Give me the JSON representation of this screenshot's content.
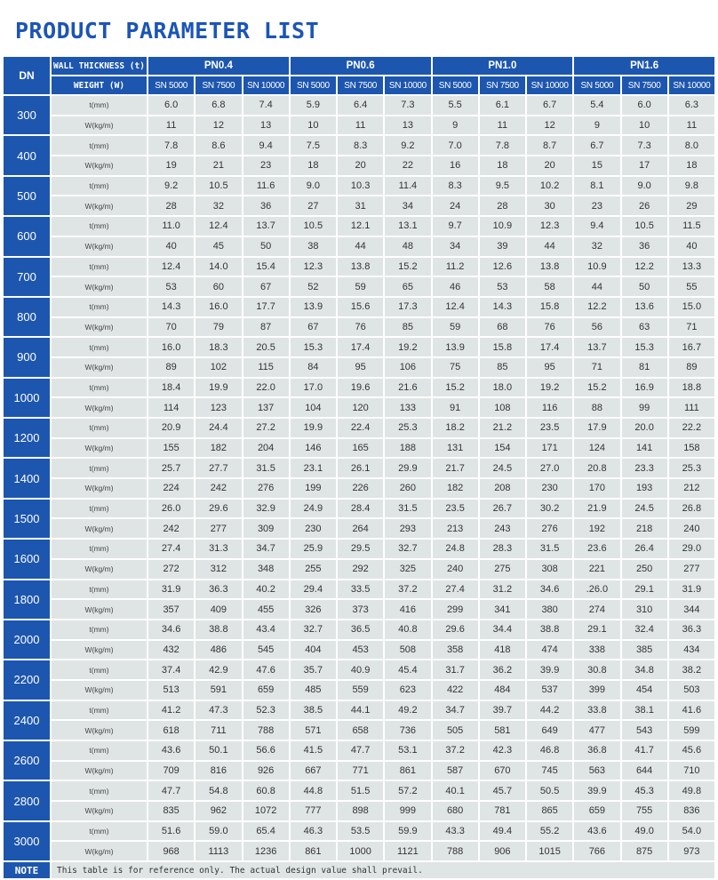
{
  "title": "PRODUCT PARAMETER LIST",
  "header": {
    "dn": "DN",
    "wall_thickness": "WALL THICKNESS (t)",
    "weight": "WEIGHT (W)",
    "pn_groups": [
      "PN0.4",
      "PN0.6",
      "PN1.0",
      "PN1.6"
    ],
    "sn_classes": [
      "SN 5000",
      "SN 7500",
      "SN 10000"
    ]
  },
  "row_labels": {
    "t": "t(mm)",
    "w": "W(kg/m)"
  },
  "rows": [
    {
      "dn": "300",
      "t": [
        "6.0",
        "6.8",
        "7.4",
        "5.9",
        "6.4",
        "7.3",
        "5.5",
        "6.1",
        "6.7",
        "5.4",
        "6.0",
        "6.3"
      ],
      "w": [
        "11",
        "12",
        "13",
        "10",
        "11",
        "13",
        "9",
        "11",
        "12",
        "9",
        "10",
        "11"
      ]
    },
    {
      "dn": "400",
      "t": [
        "7.8",
        "8.6",
        "9.4",
        "7.5",
        "8.3",
        "9.2",
        "7.0",
        "7.8",
        "8.7",
        "6.7",
        "7.3",
        "8.0"
      ],
      "w": [
        "19",
        "21",
        "23",
        "18",
        "20",
        "22",
        "16",
        "18",
        "20",
        "15",
        "17",
        "18"
      ]
    },
    {
      "dn": "500",
      "t": [
        "9.2",
        "10.5",
        "11.6",
        "9.0",
        "10.3",
        "11.4",
        "8.3",
        "9.5",
        "10.2",
        "8.1",
        "9.0",
        "9.8"
      ],
      "w": [
        "28",
        "32",
        "36",
        "27",
        "31",
        "34",
        "24",
        "28",
        "30",
        "23",
        "26",
        "29"
      ]
    },
    {
      "dn": "600",
      "t": [
        "11.0",
        "12.4",
        "13.7",
        "10.5",
        "12.1",
        "13.1",
        "9.7",
        "10.9",
        "12.3",
        "9.4",
        "10.5",
        "11.5"
      ],
      "w": [
        "40",
        "45",
        "50",
        "38",
        "44",
        "48",
        "34",
        "39",
        "44",
        "32",
        "36",
        "40"
      ]
    },
    {
      "dn": "700",
      "t": [
        "12.4",
        "14.0",
        "15.4",
        "12.3",
        "13.8",
        "15.2",
        "11.2",
        "12.6",
        "13.8",
        "10.9",
        "12.2",
        "13.3"
      ],
      "w": [
        "53",
        "60",
        "67",
        "52",
        "59",
        "65",
        "46",
        "53",
        "58",
        "44",
        "50",
        "55"
      ]
    },
    {
      "dn": "800",
      "t": [
        "14.3",
        "16.0",
        "17.7",
        "13.9",
        "15.6",
        "17.3",
        "12.4",
        "14.3",
        "15.8",
        "12.2",
        "13.6",
        "15.0"
      ],
      "w": [
        "70",
        "79",
        "87",
        "67",
        "76",
        "85",
        "59",
        "68",
        "76",
        "56",
        "63",
        "71"
      ]
    },
    {
      "dn": "900",
      "t": [
        "16.0",
        "18.3",
        "20.5",
        "15.3",
        "17.4",
        "19.2",
        "13.9",
        "15.8",
        "17.4",
        "13.7",
        "15.3",
        "16.7"
      ],
      "w": [
        "89",
        "102",
        "115",
        "84",
        "95",
        "106",
        "75",
        "85",
        "95",
        "71",
        "81",
        "89"
      ]
    },
    {
      "dn": "1000",
      "t": [
        "18.4",
        "19.9",
        "22.0",
        "17.0",
        "19.6",
        "21.6",
        "15.2",
        "18.0",
        "19.2",
        "15.2",
        "16.9",
        "18.8"
      ],
      "w": [
        "114",
        "123",
        "137",
        "104",
        "120",
        "133",
        "91",
        "108",
        "116",
        "88",
        "99",
        "111"
      ]
    },
    {
      "dn": "1200",
      "t": [
        "20.9",
        "24.4",
        "27.2",
        "19.9",
        "22.4",
        "25.3",
        "18.2",
        "21.2",
        "23.5",
        "17.9",
        "20.0",
        "22.2"
      ],
      "w": [
        "155",
        "182",
        "204",
        "146",
        "165",
        "188",
        "131",
        "154",
        "171",
        "124",
        "141",
        "158"
      ]
    },
    {
      "dn": "1400",
      "t": [
        "25.7",
        "27.7",
        "31.5",
        "23.1",
        "26.1",
        "29.9",
        "21.7",
        "24.5",
        "27.0",
        "20.8",
        "23.3",
        "25.3"
      ],
      "w": [
        "224",
        "242",
        "276",
        "199",
        "226",
        "260",
        "182",
        "208",
        "230",
        "170",
        "193",
        "212"
      ]
    },
    {
      "dn": "1500",
      "t": [
        "26.0",
        "29.6",
        "32.9",
        "24.9",
        "28.4",
        "31.5",
        "23.5",
        "26.7",
        "30.2",
        "21.9",
        "24.5",
        "26.8"
      ],
      "w": [
        "242",
        "277",
        "309",
        "230",
        "264",
        "293",
        "213",
        "243",
        "276",
        "192",
        "218",
        "240"
      ]
    },
    {
      "dn": "1600",
      "t": [
        "27.4",
        "31.3",
        "34.7",
        "25.9",
        "29.5",
        "32.7",
        "24.8",
        "28.3",
        "31.5",
        "23.6",
        "26.4",
        "29.0"
      ],
      "w": [
        "272",
        "312",
        "348",
        "255",
        "292",
        "325",
        "240",
        "275",
        "308",
        "221",
        "250",
        "277"
      ]
    },
    {
      "dn": "1800",
      "t": [
        "31.9",
        "36.3",
        "40.2",
        "29.4",
        "33.5",
        "37.2",
        "27.4",
        "31.2",
        "34.6",
        ".26.0",
        "29.1",
        "31.9"
      ],
      "w": [
        "357",
        "409",
        "455",
        "326",
        "373",
        "416",
        "299",
        "341",
        "380",
        "274",
        "310",
        "344"
      ]
    },
    {
      "dn": "2000",
      "t": [
        "34.6",
        "38.8",
        "43.4",
        "32.7",
        "36.5",
        "40.8",
        "29.6",
        "34.4",
        "38.8",
        "29.1",
        "32.4",
        "36.3"
      ],
      "w": [
        "432",
        "486",
        "545",
        "404",
        "453",
        "508",
        "358",
        "418",
        "474",
        "338",
        "385",
        "434"
      ]
    },
    {
      "dn": "2200",
      "t": [
        "37.4",
        "42.9",
        "47.6",
        "35.7",
        "40.9",
        "45.4",
        "31.7",
        "36.2",
        "39.9",
        "30.8",
        "34.8",
        "38.2"
      ],
      "w": [
        "513",
        "591",
        "659",
        "485",
        "559",
        "623",
        "422",
        "484",
        "537",
        "399",
        "454",
        "503"
      ]
    },
    {
      "dn": "2400",
      "t": [
        "41.2",
        "47.3",
        "52.3",
        "38.5",
        "44.1",
        "49.2",
        "34.7",
        "39.7",
        "44.2",
        "33.8",
        "38.1",
        "41.6"
      ],
      "w": [
        "618",
        "711",
        "788",
        "571",
        "658",
        "736",
        "505",
        "581",
        "649",
        "477",
        "543",
        "599"
      ]
    },
    {
      "dn": "2600",
      "t": [
        "43.6",
        "50.1",
        "56.6",
        "41.5",
        "47.7",
        "53.1",
        "37.2",
        "42.3",
        "46.8",
        "36.8",
        "41.7",
        "45.6"
      ],
      "w": [
        "709",
        "816",
        "926",
        "667",
        "771",
        "861",
        "587",
        "670",
        "745",
        "563",
        "644",
        "710"
      ]
    },
    {
      "dn": "2800",
      "t": [
        "47.7",
        "54.8",
        "60.8",
        "44.8",
        "51.5",
        "57.2",
        "40.1",
        "45.7",
        "50.5",
        "39.9",
        "45.3",
        "49.8"
      ],
      "w": [
        "835",
        "962",
        "1072",
        "777",
        "898",
        "999",
        "680",
        "781",
        "865",
        "659",
        "755",
        "836"
      ]
    },
    {
      "dn": "3000",
      "t": [
        "51.6",
        "59.0",
        "65.4",
        "46.3",
        "53.5",
        "59.9",
        "43.3",
        "49.4",
        "55.2",
        "43.6",
        "49.0",
        "54.0"
      ],
      "w": [
        "968",
        "1113",
        "1236",
        "861",
        "1000",
        "1121",
        "788",
        "906",
        "1015",
        "766",
        "875",
        "973"
      ]
    }
  ],
  "note": {
    "label": "NOTE",
    "text": "This table is for reference only. The actual design value shall prevail."
  },
  "colors": {
    "header_blue": "#1d56ae",
    "cell_gray": "#dfe5e4",
    "title_blue": "#1c55b5"
  }
}
